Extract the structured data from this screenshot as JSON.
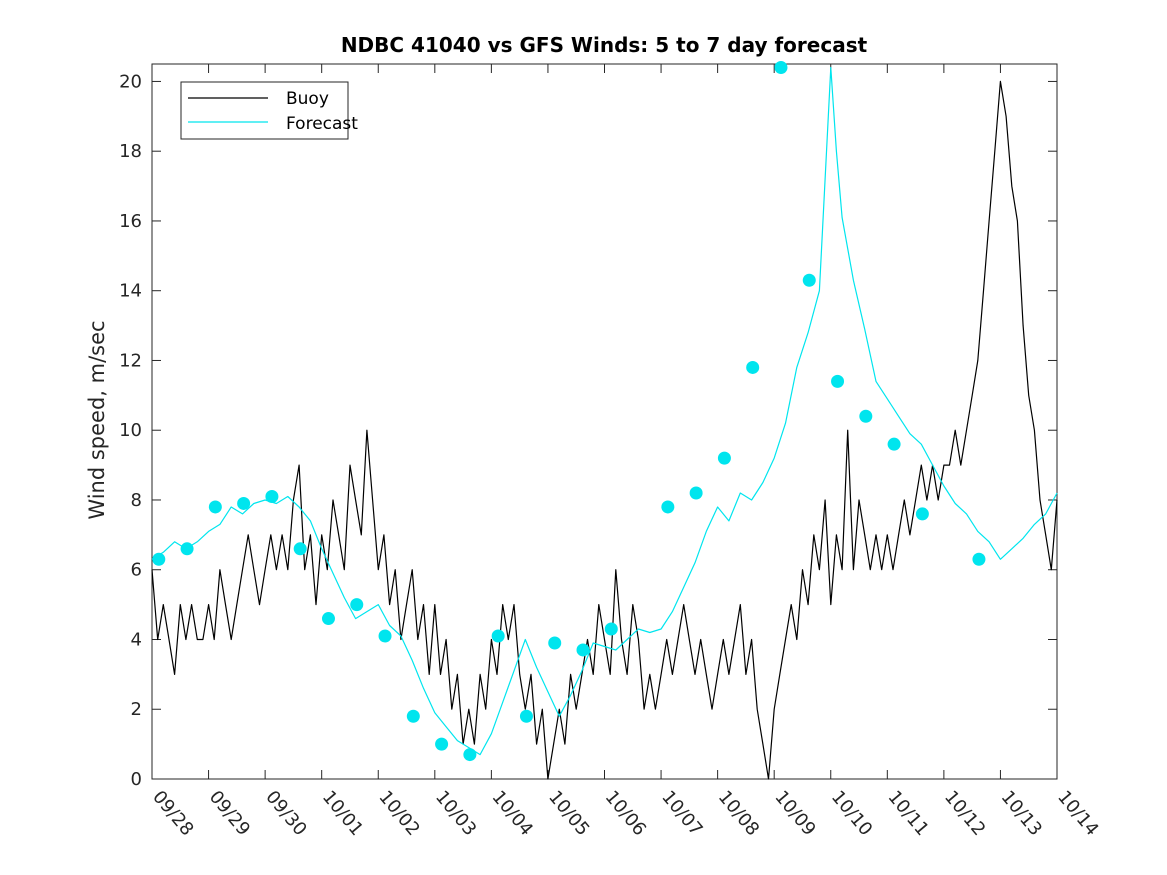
{
  "chart_data": {
    "type": "line",
    "title": "NDBC 41040 vs GFS Winds: 5 to 7 day forecast",
    "xlabel": "",
    "ylabel": "Wind speed, m/sec",
    "xlim": [
      0,
      16
    ],
    "ylim": [
      0,
      20.5
    ],
    "x_tick_labels": [
      "09/28",
      "09/29",
      "09/30",
      "10/01",
      "10/02",
      "10/03",
      "10/04",
      "10/05",
      "10/06",
      "10/07",
      "10/08",
      "10/09",
      "10/10",
      "10/11",
      "10/12",
      "10/13",
      "10/14"
    ],
    "y_ticks": [
      0,
      2,
      4,
      6,
      8,
      10,
      12,
      14,
      16,
      18,
      20
    ],
    "x_unit": "days since 09/28 00:00",
    "legend": {
      "placement": "top-left",
      "entries": [
        "Buoy",
        "Forecast"
      ]
    },
    "colors": {
      "buoy": "#000000",
      "forecast": "#00e5ee",
      "axes": "#262626"
    },
    "series": [
      {
        "name": "Buoy",
        "points": [
          [
            0.0,
            6.0
          ],
          [
            0.1,
            4.0
          ],
          [
            0.2,
            5.0
          ],
          [
            0.3,
            4.0
          ],
          [
            0.4,
            3.0
          ],
          [
            0.5,
            5.0
          ],
          [
            0.6,
            4.0
          ],
          [
            0.7,
            5.0
          ],
          [
            0.8,
            4.0
          ],
          [
            0.9,
            4.0
          ],
          [
            1.0,
            5.0
          ],
          [
            1.1,
            4.0
          ],
          [
            1.2,
            6.0
          ],
          [
            1.3,
            5.0
          ],
          [
            1.4,
            4.0
          ],
          [
            1.5,
            5.0
          ],
          [
            1.6,
            6.0
          ],
          [
            1.7,
            7.0
          ],
          [
            1.8,
            6.0
          ],
          [
            1.9,
            5.0
          ],
          [
            2.0,
            6.0
          ],
          [
            2.1,
            7.0
          ],
          [
            2.2,
            6.0
          ],
          [
            2.3,
            7.0
          ],
          [
            2.4,
            6.0
          ],
          [
            2.5,
            8.0
          ],
          [
            2.6,
            9.0
          ],
          [
            2.7,
            6.0
          ],
          [
            2.8,
            7.0
          ],
          [
            2.9,
            5.0
          ],
          [
            3.0,
            7.0
          ],
          [
            3.1,
            6.0
          ],
          [
            3.2,
            8.0
          ],
          [
            3.3,
            7.0
          ],
          [
            3.4,
            6.0
          ],
          [
            3.5,
            9.0
          ],
          [
            3.6,
            8.0
          ],
          [
            3.7,
            7.0
          ],
          [
            3.8,
            10.0
          ],
          [
            3.9,
            8.0
          ],
          [
            4.0,
            6.0
          ],
          [
            4.1,
            7.0
          ],
          [
            4.2,
            5.0
          ],
          [
            4.3,
            6.0
          ],
          [
            4.4,
            4.0
          ],
          [
            4.5,
            5.0
          ],
          [
            4.6,
            6.0
          ],
          [
            4.7,
            4.0
          ],
          [
            4.8,
            5.0
          ],
          [
            4.9,
            3.0
          ],
          [
            5.0,
            5.0
          ],
          [
            5.1,
            3.0
          ],
          [
            5.2,
            4.0
          ],
          [
            5.3,
            2.0
          ],
          [
            5.4,
            3.0
          ],
          [
            5.5,
            1.0
          ],
          [
            5.6,
            2.0
          ],
          [
            5.7,
            1.0
          ],
          [
            5.8,
            3.0
          ],
          [
            5.9,
            2.0
          ],
          [
            6.0,
            4.0
          ],
          [
            6.1,
            3.0
          ],
          [
            6.2,
            5.0
          ],
          [
            6.3,
            4.0
          ],
          [
            6.4,
            5.0
          ],
          [
            6.5,
            3.0
          ],
          [
            6.6,
            2.0
          ],
          [
            6.7,
            3.0
          ],
          [
            6.8,
            1.0
          ],
          [
            6.9,
            2.0
          ],
          [
            7.0,
            0.0
          ],
          [
            7.1,
            1.0
          ],
          [
            7.2,
            2.0
          ],
          [
            7.3,
            1.0
          ],
          [
            7.4,
            3.0
          ],
          [
            7.5,
            2.0
          ],
          [
            7.6,
            3.0
          ],
          [
            7.7,
            4.0
          ],
          [
            7.8,
            3.0
          ],
          [
            7.9,
            5.0
          ],
          [
            8.0,
            4.0
          ],
          [
            8.1,
            3.0
          ],
          [
            8.2,
            6.0
          ],
          [
            8.3,
            4.0
          ],
          [
            8.4,
            3.0
          ],
          [
            8.5,
            5.0
          ],
          [
            8.6,
            4.0
          ],
          [
            8.7,
            2.0
          ],
          [
            8.8,
            3.0
          ],
          [
            8.9,
            2.0
          ],
          [
            9.0,
            3.0
          ],
          [
            9.1,
            4.0
          ],
          [
            9.2,
            3.0
          ],
          [
            9.3,
            4.0
          ],
          [
            9.4,
            5.0
          ],
          [
            9.5,
            4.0
          ],
          [
            9.6,
            3.0
          ],
          [
            9.7,
            4.0
          ],
          [
            9.8,
            3.0
          ],
          [
            9.9,
            2.0
          ],
          [
            10.0,
            3.0
          ],
          [
            10.1,
            4.0
          ],
          [
            10.2,
            3.0
          ],
          [
            10.3,
            4.0
          ],
          [
            10.4,
            5.0
          ],
          [
            10.5,
            3.0
          ],
          [
            10.6,
            4.0
          ],
          [
            10.7,
            2.0
          ],
          [
            10.8,
            1.0
          ],
          [
            10.9,
            0.0
          ],
          [
            11.0,
            2.0
          ],
          [
            11.1,
            3.0
          ],
          [
            11.2,
            4.0
          ],
          [
            11.3,
            5.0
          ],
          [
            11.4,
            4.0
          ],
          [
            11.5,
            6.0
          ],
          [
            11.6,
            5.0
          ],
          [
            11.7,
            7.0
          ],
          [
            11.8,
            6.0
          ],
          [
            11.9,
            8.0
          ],
          [
            12.0,
            5.0
          ],
          [
            12.1,
            7.0
          ],
          [
            12.2,
            6.0
          ],
          [
            12.3,
            10.0
          ],
          [
            12.4,
            6.0
          ],
          [
            12.5,
            8.0
          ],
          [
            12.6,
            7.0
          ],
          [
            12.7,
            6.0
          ],
          [
            12.8,
            7.0
          ],
          [
            12.9,
            6.0
          ],
          [
            13.0,
            7.0
          ],
          [
            13.1,
            6.0
          ],
          [
            13.2,
            7.0
          ],
          [
            13.3,
            8.0
          ],
          [
            13.4,
            7.0
          ],
          [
            13.5,
            8.0
          ],
          [
            13.6,
            9.0
          ],
          [
            13.7,
            8.0
          ],
          [
            13.8,
            9.0
          ],
          [
            13.9,
            8.0
          ],
          [
            14.0,
            9.0
          ],
          [
            14.1,
            9.0
          ],
          [
            14.2,
            10.0
          ],
          [
            14.3,
            9.0
          ],
          [
            14.4,
            10.0
          ],
          [
            14.5,
            11.0
          ],
          [
            14.6,
            12.0
          ],
          [
            14.7,
            14.0
          ],
          [
            14.8,
            16.0
          ],
          [
            14.9,
            18.0
          ],
          [
            15.0,
            20.0
          ],
          [
            15.1,
            19.0
          ],
          [
            15.2,
            17.0
          ],
          [
            15.3,
            16.0
          ],
          [
            15.4,
            13.0
          ],
          [
            15.5,
            11.0
          ],
          [
            15.6,
            10.0
          ],
          [
            15.7,
            8.0
          ],
          [
            15.8,
            7.0
          ],
          [
            15.9,
            6.0
          ],
          [
            16.0,
            8.0
          ]
        ]
      },
      {
        "name": "Forecast",
        "points": [
          [
            0.0,
            6.3
          ],
          [
            0.2,
            6.5
          ],
          [
            0.4,
            6.8
          ],
          [
            0.6,
            6.6
          ],
          [
            0.8,
            6.8
          ],
          [
            1.0,
            7.1
          ],
          [
            1.2,
            7.3
          ],
          [
            1.4,
            7.8
          ],
          [
            1.6,
            7.6
          ],
          [
            1.8,
            7.9
          ],
          [
            2.0,
            8.0
          ],
          [
            2.2,
            7.9
          ],
          [
            2.4,
            8.1
          ],
          [
            2.6,
            7.8
          ],
          [
            2.8,
            7.4
          ],
          [
            3.0,
            6.6
          ],
          [
            3.2,
            5.9
          ],
          [
            3.4,
            5.2
          ],
          [
            3.6,
            4.6
          ],
          [
            3.8,
            4.8
          ],
          [
            4.0,
            5.0
          ],
          [
            4.2,
            4.4
          ],
          [
            4.4,
            4.1
          ],
          [
            4.6,
            3.4
          ],
          [
            4.8,
            2.6
          ],
          [
            5.0,
            1.9
          ],
          [
            5.2,
            1.5
          ],
          [
            5.4,
            1.1
          ],
          [
            5.6,
            0.9
          ],
          [
            5.8,
            0.7
          ],
          [
            6.0,
            1.3
          ],
          [
            6.2,
            2.2
          ],
          [
            6.4,
            3.1
          ],
          [
            6.6,
            4.0
          ],
          [
            6.8,
            3.2
          ],
          [
            7.0,
            2.5
          ],
          [
            7.2,
            1.8
          ],
          [
            7.4,
            2.4
          ],
          [
            7.6,
            3.1
          ],
          [
            7.8,
            3.9
          ],
          [
            8.0,
            3.8
          ],
          [
            8.2,
            3.7
          ],
          [
            8.4,
            4.0
          ],
          [
            8.6,
            4.3
          ],
          [
            8.8,
            4.2
          ],
          [
            9.0,
            4.3
          ],
          [
            9.2,
            4.8
          ],
          [
            9.4,
            5.5
          ],
          [
            9.6,
            6.2
          ],
          [
            9.8,
            7.1
          ],
          [
            10.0,
            7.8
          ],
          [
            10.2,
            7.4
          ],
          [
            10.4,
            8.2
          ],
          [
            10.6,
            8.0
          ],
          [
            10.8,
            8.5
          ],
          [
            11.0,
            9.2
          ],
          [
            11.2,
            10.2
          ],
          [
            11.4,
            11.8
          ],
          [
            11.6,
            12.8
          ],
          [
            11.8,
            14.0
          ],
          [
            12.0,
            20.4
          ],
          [
            12.1,
            18.0
          ],
          [
            12.2,
            16.1
          ],
          [
            12.4,
            14.3
          ],
          [
            12.6,
            12.9
          ],
          [
            12.8,
            11.4
          ],
          [
            13.0,
            10.9
          ],
          [
            13.2,
            10.4
          ],
          [
            13.4,
            9.9
          ],
          [
            13.6,
            9.6
          ],
          [
            13.8,
            9.0
          ],
          [
            14.0,
            8.4
          ],
          [
            14.2,
            7.9
          ],
          [
            14.4,
            7.6
          ],
          [
            14.6,
            7.1
          ],
          [
            14.8,
            6.8
          ],
          [
            15.0,
            6.3
          ],
          [
            15.2,
            6.6
          ],
          [
            15.4,
            6.9
          ],
          [
            15.6,
            7.3
          ],
          [
            15.8,
            7.6
          ],
          [
            16.0,
            8.2
          ]
        ]
      }
    ],
    "forecast_markers": [
      [
        0.12,
        6.3
      ],
      [
        0.62,
        6.6
      ],
      [
        1.12,
        7.8
      ],
      [
        1.62,
        7.9
      ],
      [
        2.12,
        8.1
      ],
      [
        2.62,
        6.6
      ],
      [
        3.12,
        4.6
      ],
      [
        3.62,
        5.0
      ],
      [
        4.12,
        4.1
      ],
      [
        4.62,
        1.8
      ],
      [
        5.12,
        1.0
      ],
      [
        5.62,
        0.7
      ],
      [
        6.12,
        4.1
      ],
      [
        6.62,
        1.8
      ],
      [
        7.12,
        3.9
      ],
      [
        7.62,
        3.7
      ],
      [
        8.12,
        4.3
      ],
      [
        9.12,
        7.8
      ],
      [
        9.62,
        8.2
      ],
      [
        10.12,
        9.2
      ],
      [
        10.62,
        11.8
      ],
      [
        11.12,
        20.4
      ],
      [
        11.62,
        14.3
      ],
      [
        12.12,
        11.4
      ],
      [
        12.62,
        10.4
      ],
      [
        13.12,
        9.6
      ],
      [
        13.62,
        7.6
      ],
      [
        14.62,
        6.3
      ]
    ]
  }
}
